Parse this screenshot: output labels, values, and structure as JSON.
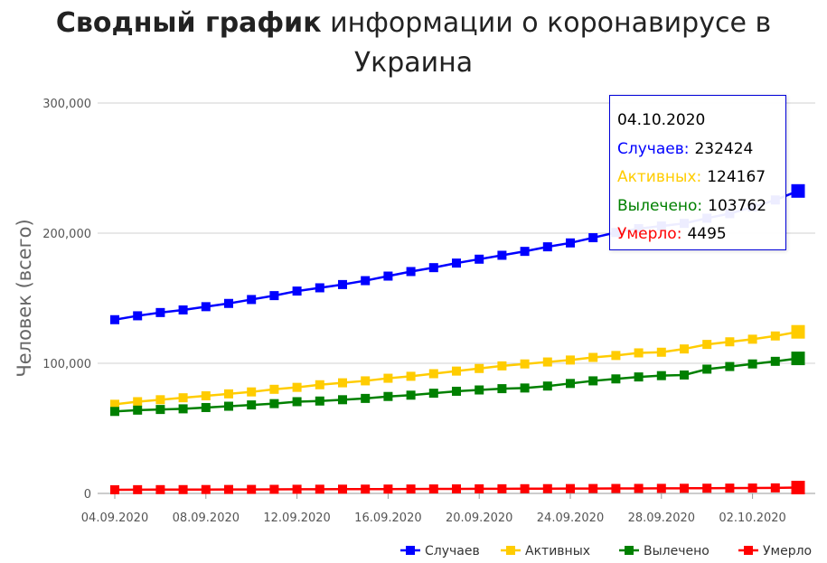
{
  "title": {
    "bold": "Сводный график",
    "rest": " информации о коронавирусе в Украина"
  },
  "chart_data": {
    "type": "line",
    "ylabel": "Человек (всего)",
    "ylim": [
      0,
      300000
    ],
    "y_ticks": [
      "0",
      "100,000",
      "200,000",
      "300,000"
    ],
    "x_tick_labels": [
      "04.09.2020",
      "08.09.2020",
      "12.09.2020",
      "16.09.2020",
      "20.09.2020",
      "24.09.2020",
      "28.09.2020",
      "02.10.2020"
    ],
    "x": [
      "04.09.2020",
      "05.09.2020",
      "06.09.2020",
      "07.09.2020",
      "08.09.2020",
      "09.09.2020",
      "10.09.2020",
      "11.09.2020",
      "12.09.2020",
      "13.09.2020",
      "14.09.2020",
      "15.09.2020",
      "16.09.2020",
      "17.09.2020",
      "18.09.2020",
      "19.09.2020",
      "20.09.2020",
      "21.09.2020",
      "22.09.2020",
      "23.09.2020",
      "24.09.2020",
      "25.09.2020",
      "26.09.2020",
      "27.09.2020",
      "28.09.2020",
      "29.09.2020",
      "30.09.2020",
      "01.10.2020",
      "02.10.2020",
      "03.10.2020",
      "04.10.2020"
    ],
    "grid": true,
    "legend_position": "bottom-right",
    "series": [
      {
        "name": "Случаев",
        "color": "#0000ff",
        "values": [
          133500,
          136500,
          139000,
          141000,
          143500,
          146000,
          149000,
          152000,
          155500,
          158000,
          160500,
          163500,
          167000,
          170500,
          173500,
          177000,
          180000,
          183000,
          186000,
          189500,
          192500,
          196500,
          200500,
          203500,
          205500,
          207500,
          211500,
          215000,
          220000,
          225500,
          232424
        ]
      },
      {
        "name": "Активных",
        "color": "#ffcc00",
        "values": [
          68500,
          70500,
          72000,
          73500,
          75000,
          76500,
          78000,
          80000,
          81500,
          83500,
          85000,
          86500,
          88500,
          90000,
          92000,
          94000,
          96000,
          98000,
          99500,
          101000,
          102500,
          104500,
          106000,
          108000,
          108500,
          111000,
          114500,
          116500,
          118500,
          121000,
          124167
        ]
      },
      {
        "name": "Вылечено",
        "color": "#008000",
        "values": [
          63000,
          64000,
          64500,
          65000,
          66000,
          67000,
          68000,
          69000,
          70500,
          71000,
          72000,
          73000,
          74500,
          75500,
          77000,
          78500,
          79500,
          80500,
          81000,
          82500,
          84500,
          86500,
          88000,
          89500,
          90500,
          91000,
          95500,
          97500,
          99500,
          101500,
          103762
        ]
      },
      {
        "name": "Умерло",
        "color": "#ff0000",
        "values": [
          2800,
          2870,
          2910,
          2940,
          2990,
          3030,
          3080,
          3130,
          3180,
          3220,
          3260,
          3300,
          3340,
          3390,
          3440,
          3490,
          3530,
          3570,
          3620,
          3670,
          3720,
          3760,
          3800,
          3850,
          3890,
          3940,
          4000,
          4070,
          4150,
          4260,
          4495
        ]
      }
    ]
  },
  "tooltip": {
    "date": "04.10.2020",
    "rows": [
      {
        "label": "Случаев:",
        "value": "232424",
        "color": "#0000ff"
      },
      {
        "label": "Активных:",
        "value": "124167",
        "color": "#ffcc00"
      },
      {
        "label": "Вылечено:",
        "value": "103762",
        "color": "#008000"
      },
      {
        "label": "Умерло:",
        "value": "4495",
        "color": "#ff0000"
      }
    ]
  }
}
